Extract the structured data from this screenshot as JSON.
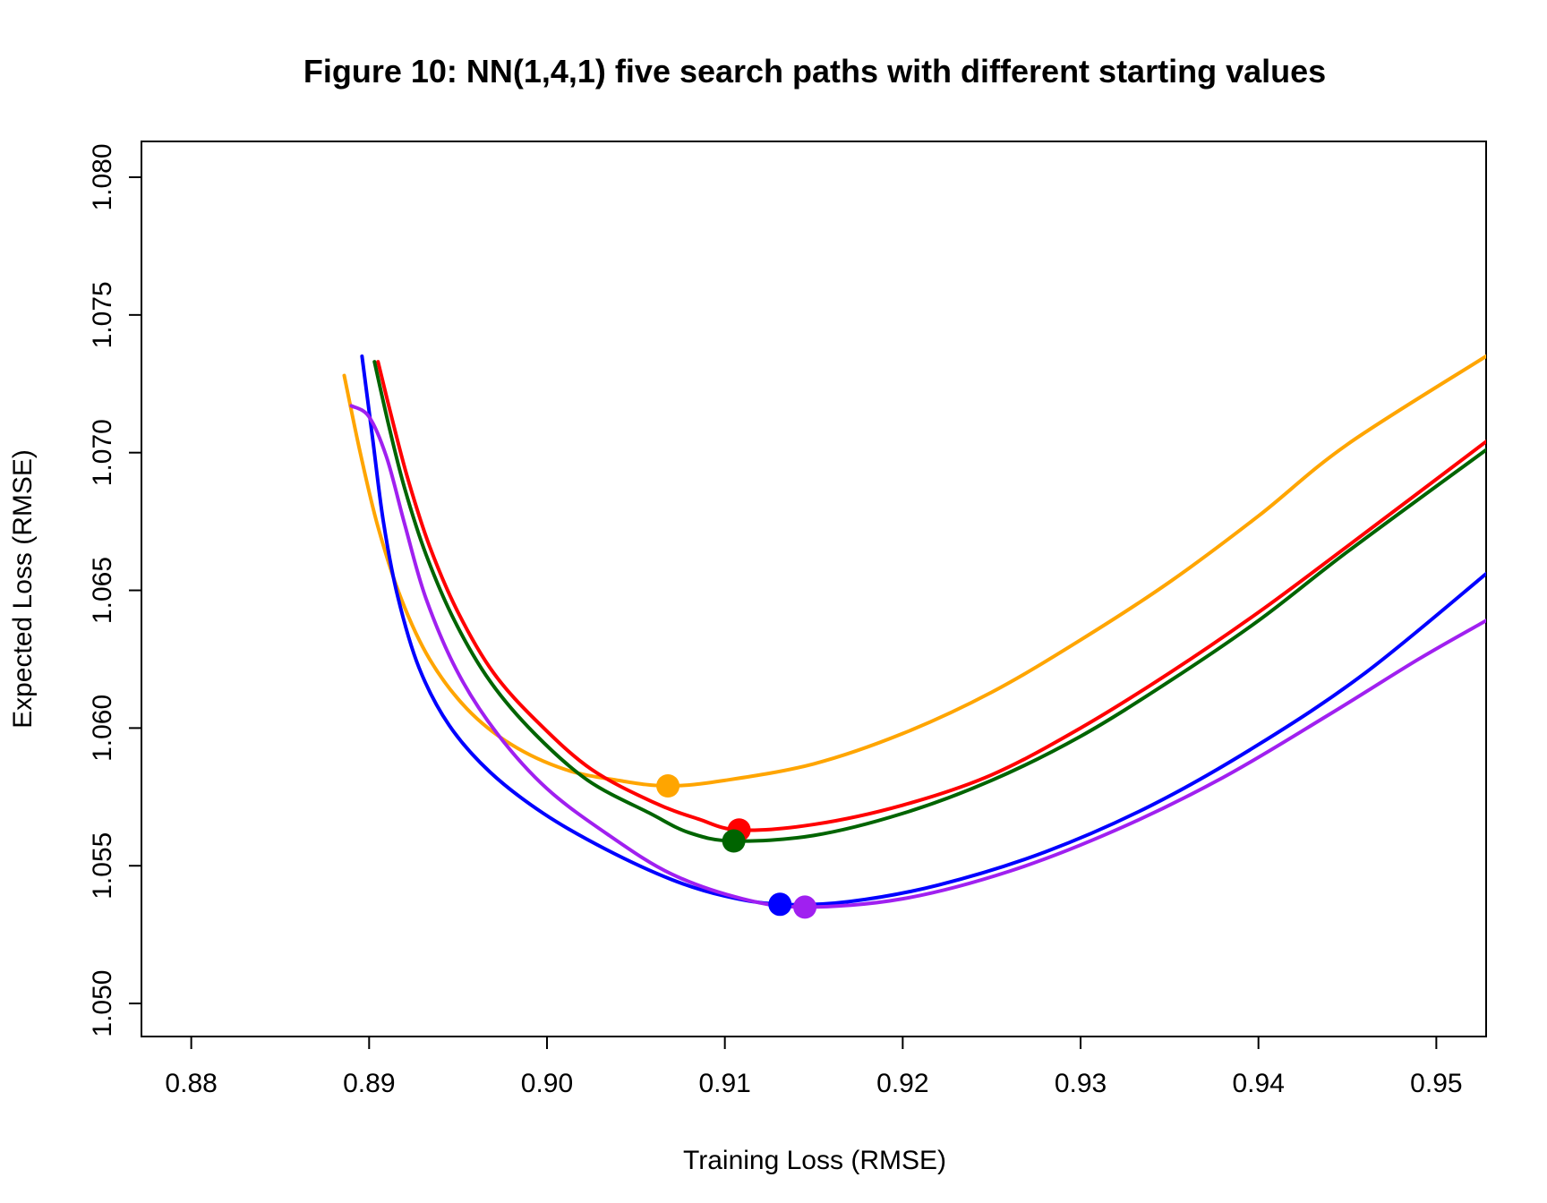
{
  "chart_data": {
    "type": "line",
    "title": "Figure 10: NN(1,4,1) five search paths with different starting values",
    "xlabel": "Training Loss (RMSE)",
    "ylabel": "Expected Loss (RMSE)",
    "xlim": [
      0.8772,
      0.9528
    ],
    "ylim": [
      1.0488,
      1.0813
    ],
    "x_ticks": [
      0.88,
      0.89,
      0.9,
      0.91,
      0.92,
      0.93,
      0.94,
      0.95
    ],
    "x_tick_labels": [
      "0.88",
      "0.89",
      "0.90",
      "0.91",
      "0.92",
      "0.93",
      "0.94",
      "0.95"
    ],
    "y_ticks": [
      1.05,
      1.055,
      1.06,
      1.065,
      1.07,
      1.075,
      1.08
    ],
    "y_tick_labels": [
      "1.050",
      "1.055",
      "1.060",
      "1.065",
      "1.070",
      "1.075",
      "1.080"
    ],
    "grid": false,
    "legend": "none",
    "series": [
      {
        "color": "#FFA500",
        "points": [
          [
            0.8886,
            1.0728
          ],
          [
            0.8895,
            1.07
          ],
          [
            0.8905,
            1.0673
          ],
          [
            0.8918,
            1.0647
          ],
          [
            0.8934,
            1.0625
          ],
          [
            0.8955,
            1.0607
          ],
          [
            0.898,
            1.0594
          ],
          [
            0.901,
            1.0585
          ],
          [
            0.904,
            1.0581
          ],
          [
            0.9068,
            1.0579
          ],
          [
            0.91,
            1.0581
          ],
          [
            0.915,
            1.0587
          ],
          [
            0.92,
            1.0598
          ],
          [
            0.925,
            1.0613
          ],
          [
            0.93,
            1.0632
          ],
          [
            0.935,
            1.0653
          ],
          [
            0.94,
            1.0677
          ],
          [
            0.945,
            1.0703
          ],
          [
            0.9528,
            1.0735
          ]
        ],
        "optimum": [
          0.9068,
          1.0579
        ]
      },
      {
        "color": "#FF0000",
        "points": [
          [
            0.8905,
            1.0733
          ],
          [
            0.8913,
            1.0712
          ],
          [
            0.8922,
            1.069
          ],
          [
            0.8934,
            1.0666
          ],
          [
            0.895,
            1.0642
          ],
          [
            0.897,
            1.062
          ],
          [
            0.8995,
            1.0602
          ],
          [
            0.9025,
            1.0585
          ],
          [
            0.906,
            1.0573
          ],
          [
            0.9085,
            1.0567
          ],
          [
            0.9108,
            1.0563
          ],
          [
            0.915,
            1.0565
          ],
          [
            0.92,
            1.0572
          ],
          [
            0.925,
            1.0583
          ],
          [
            0.93,
            1.06
          ],
          [
            0.935,
            1.062
          ],
          [
            0.94,
            1.0642
          ],
          [
            0.945,
            1.0666
          ],
          [
            0.9528,
            1.0704
          ]
        ],
        "optimum": [
          0.9108,
          1.0563
        ]
      },
      {
        "color": "#006400",
        "points": [
          [
            0.8903,
            1.0733
          ],
          [
            0.8911,
            1.071
          ],
          [
            0.892,
            1.0687
          ],
          [
            0.8932,
            1.0663
          ],
          [
            0.8948,
            1.0639
          ],
          [
            0.8968,
            1.0617
          ],
          [
            0.8993,
            1.0598
          ],
          [
            0.9023,
            1.0581
          ],
          [
            0.9058,
            1.0569
          ],
          [
            0.908,
            1.0562
          ],
          [
            0.9105,
            1.0559
          ],
          [
            0.915,
            1.0561
          ],
          [
            0.92,
            1.0569
          ],
          [
            0.925,
            1.0581
          ],
          [
            0.93,
            1.0597
          ],
          [
            0.935,
            1.0617
          ],
          [
            0.94,
            1.0639
          ],
          [
            0.945,
            1.0664
          ],
          [
            0.9528,
            1.0701
          ]
        ],
        "optimum": [
          0.9105,
          1.0559
        ]
      },
      {
        "color": "#0000FF",
        "points": [
          [
            0.8896,
            1.0735
          ],
          [
            0.8902,
            1.0705
          ],
          [
            0.8908,
            1.0675
          ],
          [
            0.8916,
            1.0648
          ],
          [
            0.8928,
            1.0622
          ],
          [
            0.8945,
            1.0601
          ],
          [
            0.8968,
            1.0584
          ],
          [
            0.8998,
            1.0569
          ],
          [
            0.9033,
            1.0556
          ],
          [
            0.907,
            1.0545
          ],
          [
            0.91,
            1.0539
          ],
          [
            0.9131,
            1.0536
          ],
          [
            0.917,
            1.0537
          ],
          [
            0.922,
            1.0543
          ],
          [
            0.928,
            1.0555
          ],
          [
            0.934,
            1.0572
          ],
          [
            0.94,
            1.0594
          ],
          [
            0.946,
            1.062
          ],
          [
            0.9528,
            1.0656
          ]
        ],
        "optimum": [
          0.9131,
          1.0536
        ]
      },
      {
        "color": "#A020F0",
        "points": [
          [
            0.889,
            1.0717
          ],
          [
            0.89,
            1.0713
          ],
          [
            0.891,
            1.0698
          ],
          [
            0.892,
            1.0674
          ],
          [
            0.8932,
            1.0647
          ],
          [
            0.895,
            1.062
          ],
          [
            0.8972,
            1.0598
          ],
          [
            0.9,
            1.0578
          ],
          [
            0.9035,
            1.0561
          ],
          [
            0.907,
            1.0547
          ],
          [
            0.911,
            1.0538
          ],
          [
            0.9145,
            1.0535
          ],
          [
            0.92,
            1.0538
          ],
          [
            0.926,
            1.0548
          ],
          [
            0.932,
            1.0563
          ],
          [
            0.938,
            1.0582
          ],
          [
            0.944,
            1.0605
          ],
          [
            0.949,
            1.0625
          ],
          [
            0.9528,
            1.0639
          ]
        ],
        "optimum": [
          0.9145,
          1.0535
        ]
      }
    ]
  }
}
